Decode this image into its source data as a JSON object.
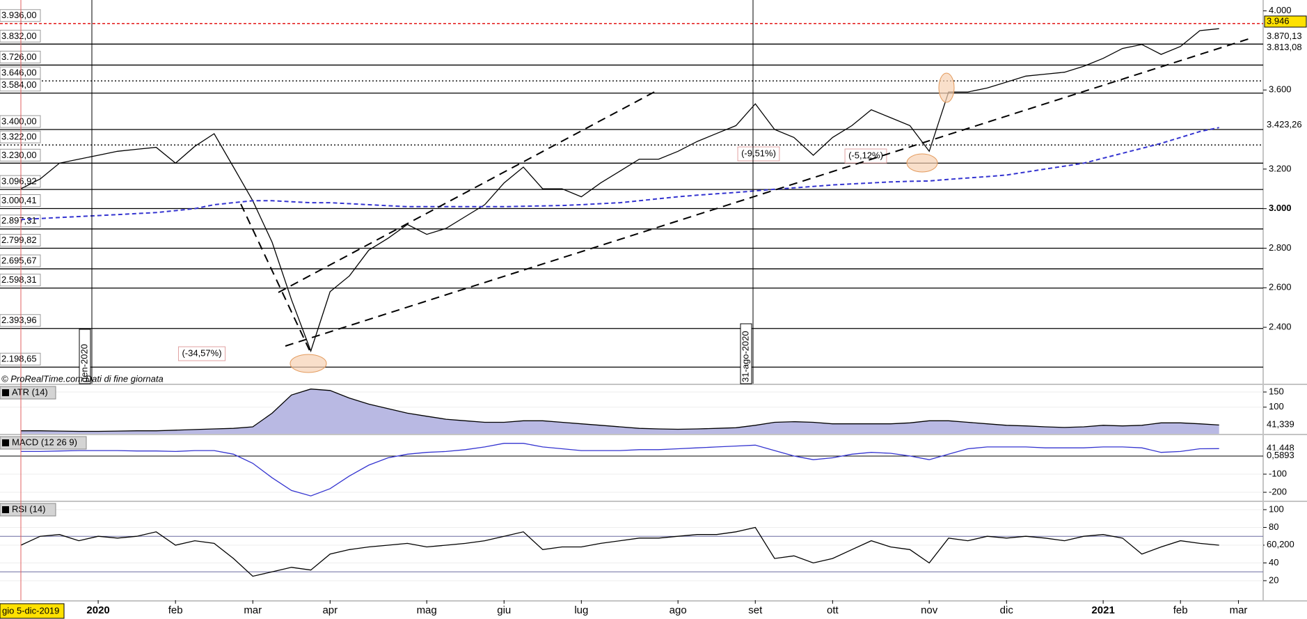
{
  "chart_data": [
    {
      "type": "line",
      "categories": [
        null,
        null,
        null,
        null,
        "2020",
        null,
        null,
        null,
        "feb",
        null,
        null,
        null,
        "mar",
        null,
        null,
        null,
        "apr",
        null,
        null,
        null,
        null,
        "mag",
        null,
        null,
        null,
        "giu",
        null,
        null,
        null,
        "lug",
        null,
        null,
        null,
        null,
        "ago",
        null,
        null,
        null,
        "set",
        null,
        null,
        null,
        "ott",
        null,
        null,
        null,
        null,
        "nov",
        null,
        null,
        null,
        "dic",
        null,
        null,
        null,
        null,
        "2021",
        null,
        null,
        null,
        "feb",
        null,
        null,
        "mar",
        null
      ],
      "series": [
        {
          "color": "#000000",
          "values": [
            3100,
            3150,
            3230,
            3250,
            3270,
            3290,
            3300,
            3310,
            3230,
            3315,
            3379,
            3210,
            3040,
            2830,
            2540,
            2280,
            2580,
            2660,
            2790,
            2850,
            2920,
            2870,
            2900,
            2960,
            3020,
            3130,
            3210,
            3100,
            3100,
            3060,
            3130,
            3190,
            3250,
            3250,
            3290,
            3340,
            3380,
            3420,
            3530,
            3400,
            3360,
            3270,
            3360,
            3420,
            3500,
            3460,
            3420,
            3290,
            3590,
            3590,
            3610,
            3640,
            3670,
            3680,
            3690,
            3720,
            3760,
            3810,
            3830,
            3780,
            3820,
            3900,
            3910,
            null,
            null
          ]
        },
        {
          "color": "#3434d0",
          "dashed": true,
          "values": [
            2945,
            2950,
            2955,
            2960,
            2965,
            2970,
            2975,
            2980,
            2990,
            3000,
            3020,
            3030,
            3040,
            3040,
            3035,
            3030,
            3030,
            3025,
            3020,
            3015,
            3010,
            3010,
            3010,
            3010,
            3010,
            3010,
            3012,
            3014,
            3016,
            3020,
            3025,
            3030,
            3040,
            3050,
            3060,
            3068,
            3075,
            3082,
            3090,
            3098,
            3105,
            3112,
            3120,
            3125,
            3130,
            3135,
            3138,
            3140,
            3148,
            3155,
            3162,
            3170,
            3185,
            3200,
            3215,
            3230,
            3255,
            3280,
            3305,
            3330,
            3360,
            3390,
            3410,
            null,
            null
          ]
        }
      ],
      "ylim": [
        2115,
        4055
      ],
      "yticks": [
        {
          "value": 4000,
          "label": "4.000"
        },
        {
          "value": 3600,
          "label": "3.600"
        },
        {
          "value": 3200,
          "label": "3.200"
        },
        {
          "value": 3000,
          "label": "3.000",
          "bold": true
        },
        {
          "value": 2800,
          "label": "2.800"
        },
        {
          "value": 2600,
          "label": "2.600"
        },
        {
          "value": 2400,
          "label": "2.400"
        }
      ],
      "levels": [
        {
          "value": 3936,
          "label": "3.936,00",
          "color": "#e00000",
          "style": "dashed"
        },
        {
          "value": 3832,
          "label": "3.832,00"
        },
        {
          "value": 3726,
          "label": "3.726,00"
        },
        {
          "value": 3646,
          "label": "3.646,00",
          "style": "dotted"
        },
        {
          "value": 3584,
          "label": "3.584,00"
        },
        {
          "value": 3400,
          "label": "3.400,00"
        },
        {
          "value": 3322,
          "label": "3.322,00",
          "style": "dotted"
        },
        {
          "value": 3230,
          "label": "3.230,00"
        },
        {
          "value": 3096.92,
          "label": "3.096,92"
        },
        {
          "value": 3000.41,
          "label": "3.000,41"
        },
        {
          "value": 2897.31,
          "label": "2.897,31"
        },
        {
          "value": 2799.82,
          "label": "2.799,82"
        },
        {
          "value": 2695.67,
          "label": "2.695,67"
        },
        {
          "value": 2598.31,
          "label": "2.598,31"
        },
        {
          "value": 2393.96,
          "label": "2.393,96"
        },
        {
          "value": 2198.65,
          "label": "2.198,65"
        }
      ],
      "price_labels": [
        {
          "value": 3946,
          "label": "3.946",
          "color": "#000000",
          "bg": "#ffe100"
        },
        {
          "value": 3870.13,
          "label": "3.870,13",
          "color": "#e03030"
        },
        {
          "value": 3813.08,
          "label": "3.813,08",
          "color": "#30b030"
        },
        {
          "value": 3423.26,
          "label": "3.423,26",
          "color": "#3434d0"
        }
      ],
      "annotations": [
        "(-34,57%)",
        "(-9,51%)",
        "(-5,12%)"
      ],
      "markers": [
        "gen-2020",
        "31-ago-2020"
      ],
      "source": "© ProRealTime.com  Dati di fine giornata",
      "cursor_label": "gio 5-dic-2019"
    },
    {
      "type": "area",
      "title": "ATR (14)",
      "series": [
        {
          "color": "#000000",
          "fill": "#b9b9e3",
          "values": [
            22,
            22,
            21,
            20,
            20,
            21,
            22,
            22,
            24,
            26,
            28,
            30,
            35,
            80,
            140,
            160,
            155,
            130,
            110,
            95,
            80,
            70,
            60,
            55,
            50,
            50,
            55,
            55,
            50,
            45,
            40,
            35,
            30,
            28,
            27,
            28,
            30,
            32,
            40,
            50,
            52,
            50,
            45,
            45,
            45,
            45,
            48,
            55,
            55,
            50,
            45,
            40,
            38,
            35,
            33,
            35,
            40,
            38,
            40,
            48,
            48,
            45,
            41,
            null,
            null
          ]
        }
      ],
      "ylim": [
        12,
        173
      ],
      "yticks": [
        100,
        150
      ],
      "price_labels": [
        {
          "value": 41.339,
          "label": "41,339",
          "color": "#000000"
        }
      ]
    },
    {
      "type": "line",
      "title": "MACD (12 26 9)",
      "series": [
        {
          "color": "#3434d0",
          "values": [
            25,
            25,
            28,
            30,
            30,
            30,
            28,
            28,
            25,
            30,
            30,
            10,
            -40,
            -120,
            -190,
            -220,
            -180,
            -110,
            -50,
            -10,
            10,
            20,
            25,
            35,
            50,
            70,
            70,
            50,
            40,
            30,
            30,
            30,
            35,
            35,
            40,
            45,
            50,
            55,
            60,
            30,
            0,
            -20,
            -10,
            10,
            20,
            15,
            0,
            -20,
            10,
            40,
            50,
            50,
            50,
            45,
            45,
            45,
            50,
            50,
            45,
            20,
            25,
            40,
            41,
            null,
            null
          ]
        }
      ],
      "ylim": [
        -246,
        115
      ],
      "yticks": [
        -100,
        -200
      ],
      "price_labels": [
        {
          "value": 41.448,
          "label": "41,448",
          "color": "#e03030"
        },
        {
          "value": 0.5893,
          "label": "0,5893",
          "color": "#30b030"
        }
      ]
    },
    {
      "type": "line",
      "title": "RSI (14)",
      "series": [
        {
          "color": "#000000",
          "values": [
            60,
            70,
            72,
            65,
            70,
            68,
            70,
            75,
            60,
            65,
            62,
            45,
            25,
            30,
            35,
            32,
            50,
            55,
            58,
            60,
            62,
            58,
            60,
            62,
            65,
            70,
            75,
            55,
            58,
            58,
            62,
            65,
            68,
            68,
            70,
            72,
            72,
            75,
            80,
            45,
            48,
            40,
            45,
            55,
            65,
            58,
            55,
            40,
            68,
            65,
            70,
            68,
            70,
            68,
            65,
            70,
            72,
            68,
            50,
            58,
            65,
            62,
            60,
            null,
            null
          ]
        }
      ],
      "ylim": [
        -2,
        108.6
      ],
      "yticks": [
        20,
        40,
        60,
        80,
        100
      ],
      "levels": [
        {
          "value": 30
        },
        {
          "value": 70
        }
      ],
      "price_labels": [
        {
          "value": 60.2,
          "label": "60,200",
          "color": "#000000"
        }
      ]
    }
  ]
}
